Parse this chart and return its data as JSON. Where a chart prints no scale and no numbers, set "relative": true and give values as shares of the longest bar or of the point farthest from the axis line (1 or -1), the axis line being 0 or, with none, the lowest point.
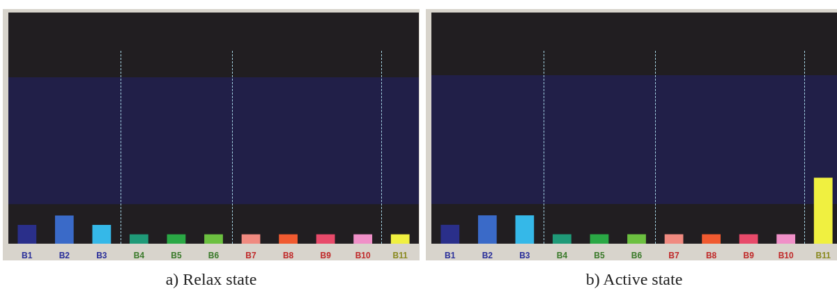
{
  "chart_data": [
    {
      "type": "bar",
      "title": "a) Relax state",
      "relative": true,
      "categories": [
        "B1",
        "B2",
        "B3",
        "B4",
        "B5",
        "B6",
        "B7",
        "B8",
        "B9",
        "B10",
        "B11"
      ],
      "values": [
        0.667,
        1,
        0.667,
        0.333,
        0.333,
        0.333,
        0.333,
        0.333,
        0.333,
        0.333,
        0.333
      ],
      "colors": [
        "#2a2f8a",
        "#3a6ac8",
        "#35b8e8",
        "#1f9a78",
        "#2aa845",
        "#6cc040",
        "#f08a80",
        "#f05a30",
        "#e84a6a",
        "#f090c8",
        "#f0f040"
      ],
      "bands": [
        {
          "axis": "y",
          "from": 1.4,
          "to": 5.9,
          "color": "#211f48"
        }
      ]
    },
    {
      "type": "bar",
      "title": "b) Active state",
      "relative": true,
      "categories": [
        "B1",
        "B2",
        "B3",
        "B4",
        "B5",
        "B6",
        "B7",
        "B8",
        "B9",
        "B10",
        "B11"
      ],
      "values": [
        0.286,
        0.429,
        0.429,
        0.143,
        0.143,
        0.143,
        0.143,
        0.143,
        0.143,
        0.143,
        1
      ],
      "colors": [
        "#2a2f8a",
        "#3a6ac8",
        "#35b8e8",
        "#1f9a78",
        "#2aa845",
        "#6cc040",
        "#f08a80",
        "#f05a30",
        "#e84a6a",
        "#f090c8",
        "#f0f040"
      ],
      "bands": [
        {
          "axis": "y",
          "from": 0.6,
          "to": 2.55,
          "color": "#211f48"
        }
      ]
    }
  ]
}
